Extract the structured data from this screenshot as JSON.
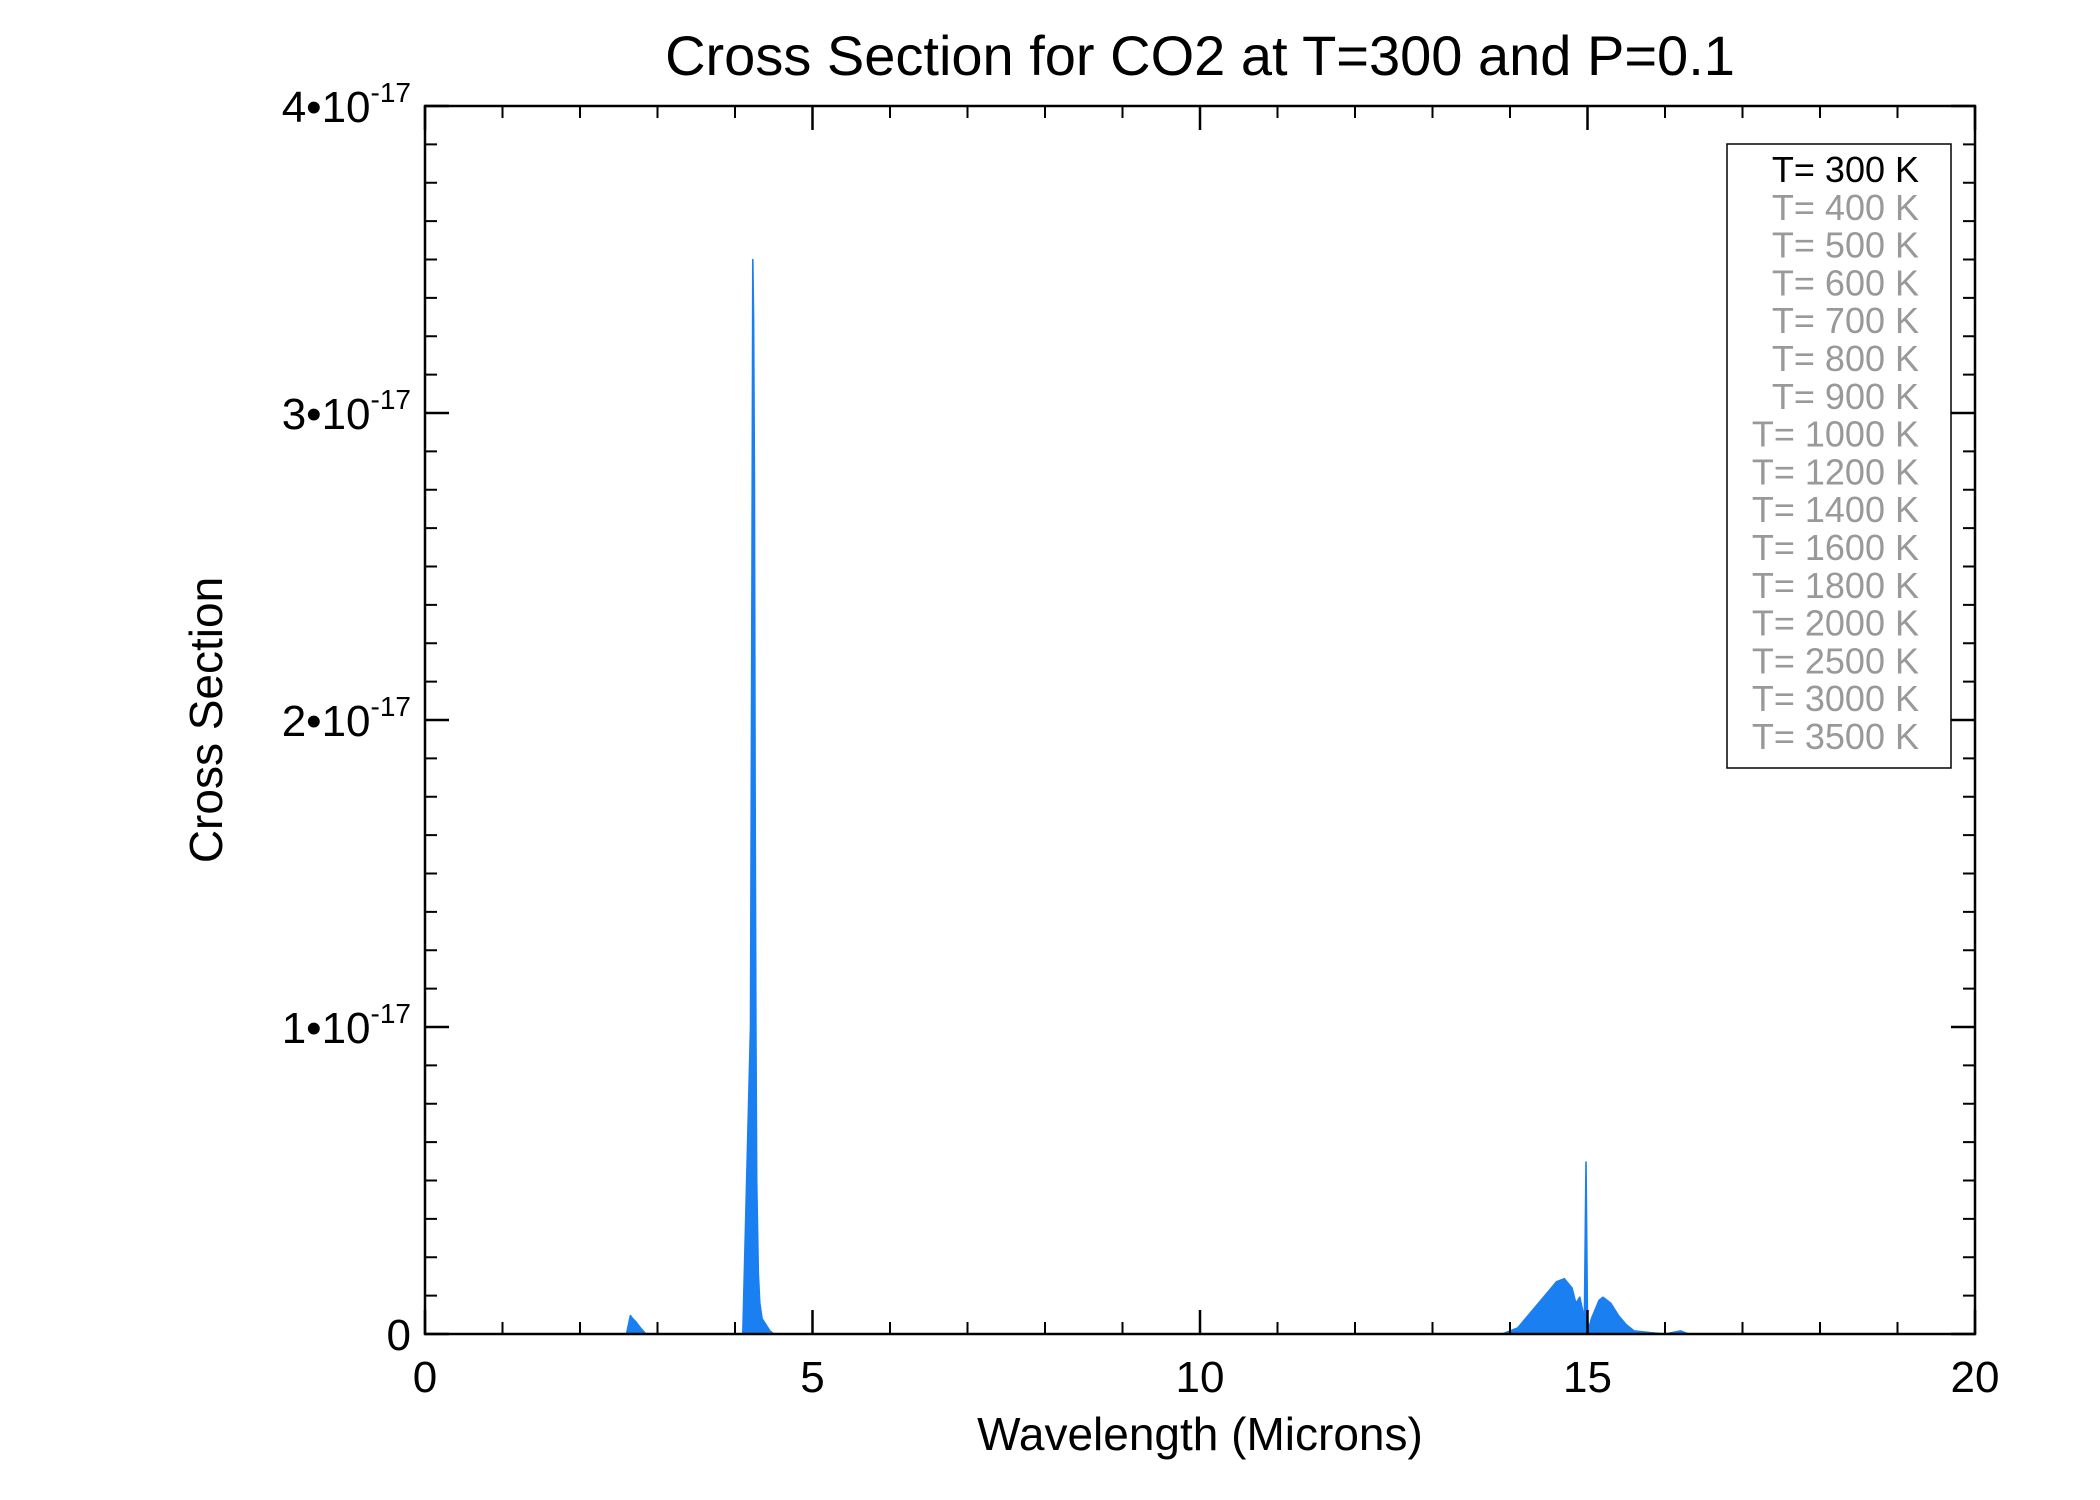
{
  "chart_data": {
    "type": "line",
    "title": "Cross Section for CO2 at T=300 and P=0.1",
    "xlabel": "Wavelength (Microns)",
    "ylabel": "Cross Section",
    "xlim": [
      0,
      20
    ],
    "ylim": [
      0,
      4e-17
    ],
    "x_ticks": [
      0,
      5,
      10,
      15,
      20
    ],
    "x_tick_labels": [
      "0",
      "5",
      "10",
      "15",
      "20"
    ],
    "y_ticks": [
      0,
      1e-17,
      2e-17,
      3e-17,
      4e-17
    ],
    "y_tick_labels": [
      {
        "base": "0",
        "exp": ""
      },
      {
        "base": "1•10",
        "exp": "-17"
      },
      {
        "base": "2•10",
        "exp": "-17"
      },
      {
        "base": "3•10",
        "exp": "-17"
      },
      {
        "base": "4•10",
        "exp": "-17"
      }
    ],
    "grid": false,
    "legend_position": "top-right",
    "legend": [
      {
        "label": "T= 300 K",
        "active": true
      },
      {
        "label": "T= 400 K",
        "active": false
      },
      {
        "label": "T= 500 K",
        "active": false
      },
      {
        "label": "T= 600 K",
        "active": false
      },
      {
        "label": "T= 700 K",
        "active": false
      },
      {
        "label": "T= 800 K",
        "active": false
      },
      {
        "label": "T= 900 K",
        "active": false
      },
      {
        "label": "T= 1000 K",
        "active": false
      },
      {
        "label": "T= 1200 K",
        "active": false
      },
      {
        "label": "T= 1400 K",
        "active": false
      },
      {
        "label": "T= 1600 K",
        "active": false
      },
      {
        "label": "T= 1800 K",
        "active": false
      },
      {
        "label": "T= 2000 K",
        "active": false
      },
      {
        "label": "T= 2500 K",
        "active": false
      },
      {
        "label": "T= 3000 K",
        "active": false
      },
      {
        "label": "T= 3500 K",
        "active": false
      }
    ],
    "colors": {
      "series": "#1a7ff0",
      "active_legend": "#000000",
      "inactive_legend": "#999999",
      "axes": "#000000"
    },
    "series": [
      {
        "name": "T= 300 K",
        "x": [
          0.8,
          2.6,
          2.65,
          2.68,
          2.72,
          2.75,
          2.78,
          2.85,
          3.0,
          4.1,
          4.2,
          4.22,
          4.23,
          4.24,
          4.25,
          4.26,
          4.27,
          4.28,
          4.3,
          4.32,
          4.35,
          4.4,
          4.45,
          4.5,
          10.0,
          13.9,
          14.1,
          14.3,
          14.5,
          14.6,
          14.7,
          14.8,
          14.85,
          14.9,
          14.96,
          14.98,
          15.0,
          15.02,
          15.05,
          15.1,
          15.15,
          15.2,
          15.3,
          15.4,
          15.5,
          15.6,
          15.8,
          16.0,
          16.2,
          16.3,
          20.0
        ],
        "y": [
          0,
          0,
          6e-19,
          5e-19,
          4e-19,
          3e-19,
          2e-19,
          0,
          0,
          0,
          1e-17,
          2.5e-17,
          3.5e-17,
          3.3e-17,
          2.8e-17,
          1.8e-17,
          1e-17,
          5e-18,
          2e-18,
          1e-18,
          5e-19,
          3e-19,
          1e-19,
          0,
          0,
          0,
          2e-19,
          8e-19,
          1.4e-18,
          1.7e-18,
          1.8e-18,
          1.5e-18,
          1e-18,
          1.2e-18,
          5e-19,
          5.6e-18,
          4e-19,
          2e-19,
          5e-19,
          8e-19,
          1.1e-18,
          1.2e-18,
          1e-18,
          6e-19,
          3e-19,
          1e-19,
          5e-20,
          0,
          1e-19,
          0,
          0
        ]
      }
    ]
  }
}
